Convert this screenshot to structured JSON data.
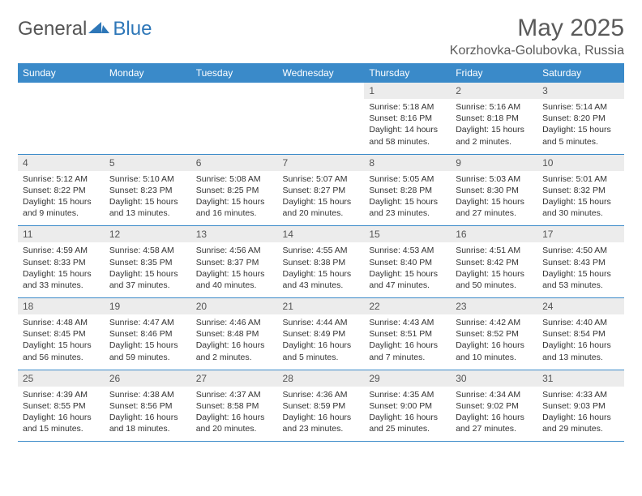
{
  "brand": {
    "part1": "General",
    "part2": "Blue"
  },
  "title": "May 2025",
  "location": "Korzhovka-Golubovka, Russia",
  "colors": {
    "header_bg": "#3a8ac9",
    "header_text": "#ffffff",
    "daynum_bg": "#ececec",
    "text": "#333333",
    "title_text": "#5a5a5a",
    "logo_blue": "#2e77b8"
  },
  "day_labels": [
    "Sunday",
    "Monday",
    "Tuesday",
    "Wednesday",
    "Thursday",
    "Friday",
    "Saturday"
  ],
  "weeks": [
    [
      null,
      null,
      null,
      null,
      {
        "n": "1",
        "sr": "5:18 AM",
        "ss": "8:16 PM",
        "dl": "14 hours and 58 minutes."
      },
      {
        "n": "2",
        "sr": "5:16 AM",
        "ss": "8:18 PM",
        "dl": "15 hours and 2 minutes."
      },
      {
        "n": "3",
        "sr": "5:14 AM",
        "ss": "8:20 PM",
        "dl": "15 hours and 5 minutes."
      }
    ],
    [
      {
        "n": "4",
        "sr": "5:12 AM",
        "ss": "8:22 PM",
        "dl": "15 hours and 9 minutes."
      },
      {
        "n": "5",
        "sr": "5:10 AM",
        "ss": "8:23 PM",
        "dl": "15 hours and 13 minutes."
      },
      {
        "n": "6",
        "sr": "5:08 AM",
        "ss": "8:25 PM",
        "dl": "15 hours and 16 minutes."
      },
      {
        "n": "7",
        "sr": "5:07 AM",
        "ss": "8:27 PM",
        "dl": "15 hours and 20 minutes."
      },
      {
        "n": "8",
        "sr": "5:05 AM",
        "ss": "8:28 PM",
        "dl": "15 hours and 23 minutes."
      },
      {
        "n": "9",
        "sr": "5:03 AM",
        "ss": "8:30 PM",
        "dl": "15 hours and 27 minutes."
      },
      {
        "n": "10",
        "sr": "5:01 AM",
        "ss": "8:32 PM",
        "dl": "15 hours and 30 minutes."
      }
    ],
    [
      {
        "n": "11",
        "sr": "4:59 AM",
        "ss": "8:33 PM",
        "dl": "15 hours and 33 minutes."
      },
      {
        "n": "12",
        "sr": "4:58 AM",
        "ss": "8:35 PM",
        "dl": "15 hours and 37 minutes."
      },
      {
        "n": "13",
        "sr": "4:56 AM",
        "ss": "8:37 PM",
        "dl": "15 hours and 40 minutes."
      },
      {
        "n": "14",
        "sr": "4:55 AM",
        "ss": "8:38 PM",
        "dl": "15 hours and 43 minutes."
      },
      {
        "n": "15",
        "sr": "4:53 AM",
        "ss": "8:40 PM",
        "dl": "15 hours and 47 minutes."
      },
      {
        "n": "16",
        "sr": "4:51 AM",
        "ss": "8:42 PM",
        "dl": "15 hours and 50 minutes."
      },
      {
        "n": "17",
        "sr": "4:50 AM",
        "ss": "8:43 PM",
        "dl": "15 hours and 53 minutes."
      }
    ],
    [
      {
        "n": "18",
        "sr": "4:48 AM",
        "ss": "8:45 PM",
        "dl": "15 hours and 56 minutes."
      },
      {
        "n": "19",
        "sr": "4:47 AM",
        "ss": "8:46 PM",
        "dl": "15 hours and 59 minutes."
      },
      {
        "n": "20",
        "sr": "4:46 AM",
        "ss": "8:48 PM",
        "dl": "16 hours and 2 minutes."
      },
      {
        "n": "21",
        "sr": "4:44 AM",
        "ss": "8:49 PM",
        "dl": "16 hours and 5 minutes."
      },
      {
        "n": "22",
        "sr": "4:43 AM",
        "ss": "8:51 PM",
        "dl": "16 hours and 7 minutes."
      },
      {
        "n": "23",
        "sr": "4:42 AM",
        "ss": "8:52 PM",
        "dl": "16 hours and 10 minutes."
      },
      {
        "n": "24",
        "sr": "4:40 AM",
        "ss": "8:54 PM",
        "dl": "16 hours and 13 minutes."
      }
    ],
    [
      {
        "n": "25",
        "sr": "4:39 AM",
        "ss": "8:55 PM",
        "dl": "16 hours and 15 minutes."
      },
      {
        "n": "26",
        "sr": "4:38 AM",
        "ss": "8:56 PM",
        "dl": "16 hours and 18 minutes."
      },
      {
        "n": "27",
        "sr": "4:37 AM",
        "ss": "8:58 PM",
        "dl": "16 hours and 20 minutes."
      },
      {
        "n": "28",
        "sr": "4:36 AM",
        "ss": "8:59 PM",
        "dl": "16 hours and 23 minutes."
      },
      {
        "n": "29",
        "sr": "4:35 AM",
        "ss": "9:00 PM",
        "dl": "16 hours and 25 minutes."
      },
      {
        "n": "30",
        "sr": "4:34 AM",
        "ss": "9:02 PM",
        "dl": "16 hours and 27 minutes."
      },
      {
        "n": "31",
        "sr": "4:33 AM",
        "ss": "9:03 PM",
        "dl": "16 hours and 29 minutes."
      }
    ]
  ],
  "labels": {
    "sunrise": "Sunrise: ",
    "sunset": "Sunset: ",
    "daylight": "Daylight: "
  }
}
